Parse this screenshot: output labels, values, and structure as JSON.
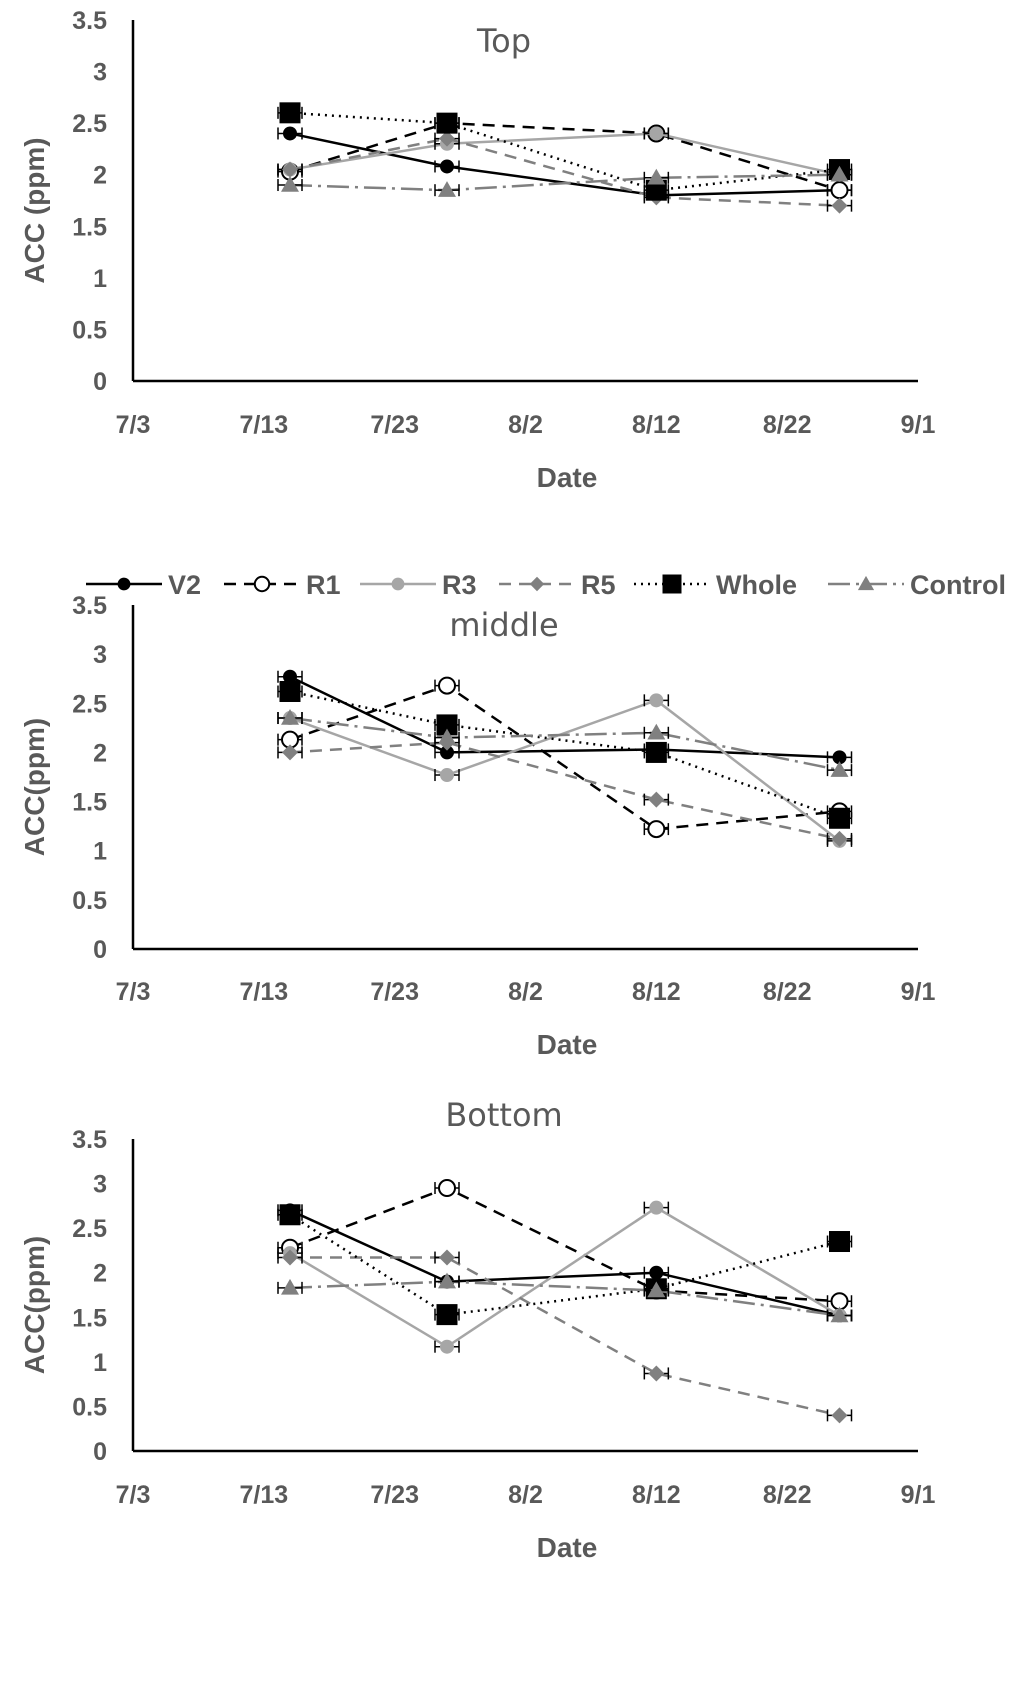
{
  "chart_data": [
    {
      "type": "line",
      "title": "Top",
      "xlabel": "Date",
      "ylabel": "ACC (ppm)",
      "x_ticks": [
        "7/3",
        "7/13",
        "7/23",
        "8/2",
        "8/12",
        "8/22",
        "9/1"
      ],
      "y_ticks": [
        "0",
        "0.5",
        "1",
        "1.5",
        "2",
        "2.5",
        "3",
        "3.5"
      ],
      "xlim": [
        0,
        60
      ],
      "ylim": [
        0,
        3.5
      ],
      "x": [
        12,
        24,
        40,
        54
      ],
      "series": [
        {
          "name": "V2",
          "values": [
            2.4,
            2.08,
            1.8,
            1.85
          ]
        },
        {
          "name": "R1",
          "values": [
            2.03,
            2.5,
            2.4,
            1.85
          ]
        },
        {
          "name": "R3",
          "values": [
            2.05,
            2.3,
            2.4,
            2.0
          ]
        },
        {
          "name": "R5",
          "values": [
            2.05,
            2.35,
            1.78,
            1.7
          ]
        },
        {
          "name": "Whole",
          "values": [
            2.6,
            2.5,
            1.85,
            2.05
          ]
        },
        {
          "name": "Control",
          "values": [
            1.9,
            1.85,
            1.97,
            2.0
          ]
        }
      ]
    },
    {
      "type": "line",
      "title": "middle",
      "xlabel": "Date",
      "ylabel": "ACC(ppm)",
      "x_ticks": [
        "7/3",
        "7/13",
        "7/23",
        "8/2",
        "8/12",
        "8/22",
        "9/1"
      ],
      "y_ticks": [
        "0",
        "0.5",
        "1",
        "1.5",
        "2",
        "2.5",
        "3",
        "3.5"
      ],
      "xlim": [
        0,
        60
      ],
      "ylim": [
        0,
        3.5
      ],
      "x": [
        12,
        24,
        40,
        54
      ],
      "series": [
        {
          "name": "V2",
          "values": [
            2.77,
            2.0,
            2.03,
            1.95
          ]
        },
        {
          "name": "R1",
          "values": [
            2.13,
            2.68,
            1.22,
            1.4
          ]
        },
        {
          "name": "R3",
          "values": [
            2.35,
            1.77,
            2.53,
            1.1
          ]
        },
        {
          "name": "R5",
          "values": [
            2.0,
            2.1,
            1.52,
            1.12
          ]
        },
        {
          "name": "Whole",
          "values": [
            2.62,
            2.28,
            2.0,
            1.33
          ]
        },
        {
          "name": "Control",
          "values": [
            2.35,
            2.15,
            2.2,
            1.82
          ]
        }
      ]
    },
    {
      "type": "line",
      "title": "Bottom",
      "xlabel": "Date",
      "ylabel": "ACC(ppm)",
      "x_ticks": [
        "7/3",
        "7/13",
        "7/23",
        "8/2",
        "8/12",
        "8/22",
        "9/1"
      ],
      "y_ticks": [
        "0",
        "0.5",
        "1",
        "1.5",
        "2",
        "2.5",
        "3",
        "3.5"
      ],
      "xlim": [
        0,
        60
      ],
      "ylim": [
        0,
        3.5
      ],
      "x": [
        12,
        24,
        40,
        54
      ],
      "series": [
        {
          "name": "V2",
          "values": [
            2.7,
            1.9,
            2.0,
            1.52
          ]
        },
        {
          "name": "R1",
          "values": [
            2.28,
            2.95,
            1.8,
            1.68
          ]
        },
        {
          "name": "R3",
          "values": [
            2.22,
            1.17,
            2.73,
            1.52
          ]
        },
        {
          "name": "R5",
          "values": [
            2.17,
            2.17,
            0.87,
            0.4
          ]
        },
        {
          "name": "Whole",
          "values": [
            2.65,
            1.53,
            1.82,
            2.35
          ]
        },
        {
          "name": "Control",
          "values": [
            1.83,
            1.9,
            1.8,
            1.52
          ]
        }
      ]
    }
  ],
  "legend": {
    "placement": "between top and middle panels",
    "entries": [
      "V2",
      "R1",
      "R3",
      "R5",
      "Whole",
      "Control"
    ]
  },
  "colors": {
    "axis": "#000000",
    "text": "#595959",
    "V2": "#000000",
    "R1": "#000000",
    "R3": "#a6a6a6",
    "R5": "#808080",
    "Whole": "#000000",
    "Control": "#808080"
  }
}
